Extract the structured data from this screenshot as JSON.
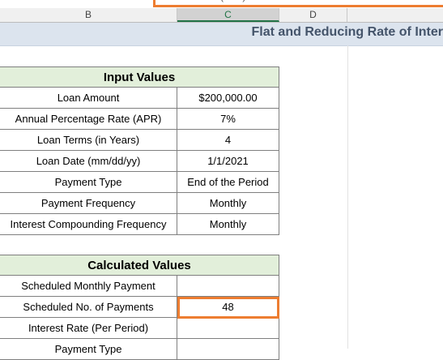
{
  "formula_bar": {
    "text": "(... ...) / ... ... ..."
  },
  "columns": [
    "B",
    "C",
    "D"
  ],
  "selected_column": "C",
  "sheet_title": "Flat and Reducing Rate of Inter",
  "input_values": {
    "header": "Input Values",
    "rows": [
      {
        "label": "Loan Amount",
        "value": "$200,000.00"
      },
      {
        "label": "Annual Percentage Rate (APR)",
        "value": "7%"
      },
      {
        "label": "Loan Terms (in Years)",
        "value": "4"
      },
      {
        "label": "Loan Date (mm/dd/yy)",
        "value": "1/1/2021"
      },
      {
        "label": "Payment Type",
        "value": "End of the Period"
      },
      {
        "label": "Payment Frequency",
        "value": "Monthly"
      },
      {
        "label": "Interest Compounding Frequency",
        "value": "Monthly"
      }
    ]
  },
  "calculated_values": {
    "header": "Calculated Values",
    "rows": [
      {
        "label": "Scheduled Monthly Payment",
        "value": ""
      },
      {
        "label": "Scheduled No. of Payments",
        "value": "48"
      },
      {
        "label": "Interest Rate (Per Period)",
        "value": ""
      },
      {
        "label": "Payment Type",
        "value": ""
      }
    ]
  },
  "colors": {
    "accent": "#ED7D31",
    "header_fill": "#E2EFDA",
    "title_color": "#44546A"
  }
}
